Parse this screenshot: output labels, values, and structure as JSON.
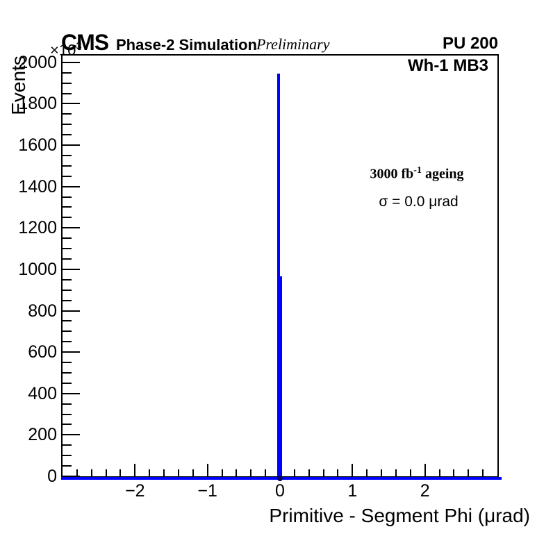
{
  "header": {
    "experiment": "CMS",
    "subtitle": "Phase-2 Simulation",
    "preliminary": "Preliminary",
    "pileup": "PU 200"
  },
  "annotations": {
    "chamber": "Wh-1 MB3",
    "ageing": {
      "prefix": "3000 fb",
      "exponent": "-1",
      "suffix": " ageing"
    },
    "sigma": "σ = 0.0 μrad"
  },
  "chart_data": {
    "type": "histogram",
    "xlabel": "Primitive - Segment Phi (μrad)",
    "ylabel": "Events",
    "y_scale": {
      "exponent_base": "×10",
      "exponent_power": "3"
    },
    "xlim": [
      -3,
      3
    ],
    "ylim_kilo_events": [
      0,
      2033
    ],
    "grid": false,
    "x_axis": {
      "major_ticks": [
        {
          "value": -2,
          "label": "−2"
        },
        {
          "value": -1,
          "label": "−1"
        },
        {
          "value": 0,
          "label": "0"
        },
        {
          "value": 1,
          "label": "1"
        },
        {
          "value": 2,
          "label": "2"
        }
      ],
      "minor_step": 0.2
    },
    "y_axis": {
      "major_ticks": [
        {
          "value": 0,
          "label": "0"
        },
        {
          "value": 200,
          "label": "200"
        },
        {
          "value": 400,
          "label": "400"
        },
        {
          "value": 600,
          "label": "600"
        },
        {
          "value": 800,
          "label": "800"
        },
        {
          "value": 1000,
          "label": "1000"
        },
        {
          "value": 1200,
          "label": "1200"
        },
        {
          "value": 1400,
          "label": "1400"
        },
        {
          "value": 1600,
          "label": "1600"
        },
        {
          "value": 1800,
          "label": "1800"
        },
        {
          "value": 2000,
          "label": "2000"
        }
      ],
      "minor_step": 50
    },
    "series": [
      {
        "name": "primitive-minus-segment-phi-residuals",
        "color": "#0000ff",
        "bins_kilo_events": [
          {
            "x_lo": -0.04,
            "x_hi": 0.0,
            "value": 1945
          },
          {
            "x_lo": 0.0,
            "x_hi": 0.03,
            "value": 965
          }
        ],
        "other_bins_value": 0,
        "baseline_value": 0
      }
    ],
    "marker": {
      "x": 0,
      "y": 0,
      "color": "#000066"
    }
  },
  "colors": {
    "histogram": "#0000ff",
    "axis": "#000000",
    "marker": "#000066",
    "background": "#ffffff"
  }
}
